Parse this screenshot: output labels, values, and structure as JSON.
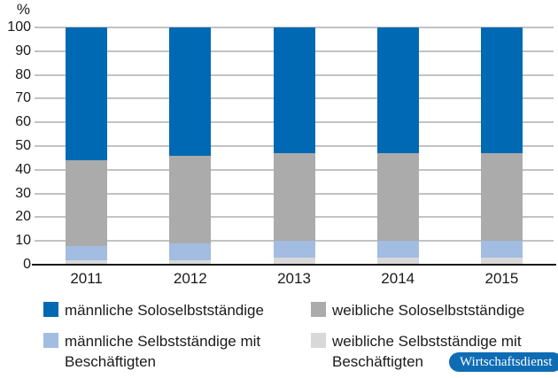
{
  "chart_data": {
    "type": "bar",
    "stacked": true,
    "title": "",
    "unit_label": "%",
    "categories": [
      "2011",
      "2012",
      "2013",
      "2014",
      "2015"
    ],
    "series": [
      {
        "name": "weibliche Selbstständige mit Beschäftigten",
        "color": "#d8d8d8",
        "values": [
          2,
          2,
          3,
          3,
          3
        ]
      },
      {
        "name": "männliche Selbstständige mit Beschäftigten",
        "color": "#a2bce2",
        "values": [
          6,
          7,
          7,
          7,
          7
        ]
      },
      {
        "name": "weibliche Soloselbstständige",
        "color": "#ababab",
        "values": [
          36,
          37,
          37,
          37,
          37
        ]
      },
      {
        "name": "männliche Soloselbstständige",
        "color": "#0069b4",
        "values": [
          56,
          54,
          53,
          53,
          53
        ]
      }
    ],
    "ylim": [
      0,
      100
    ],
    "yticks": [
      0,
      10,
      20,
      30,
      40,
      50,
      60,
      70,
      80,
      90,
      100
    ],
    "grid": true,
    "legend_position": "bottom"
  },
  "legend": {
    "items": [
      {
        "label": "männliche Soloselbstständige",
        "color": "#0069b4"
      },
      {
        "label": "weibliche Soloselbstständige",
        "color": "#ababab"
      },
      {
        "label": "männliche Selbstständige mit Beschäftigten",
        "color": "#a2bce2"
      },
      {
        "label": "weibliche Selbstständige mit Beschäftigten",
        "color": "#d8d8d8"
      }
    ]
  },
  "badge": {
    "label": "Wirtschaftsdienst",
    "bg": "#0e6cb5",
    "text_color": "#ffffff"
  },
  "colors": {
    "axis": "#1a1a1a",
    "gridline": "#c3c3c3",
    "text": "#1a1a1a"
  }
}
